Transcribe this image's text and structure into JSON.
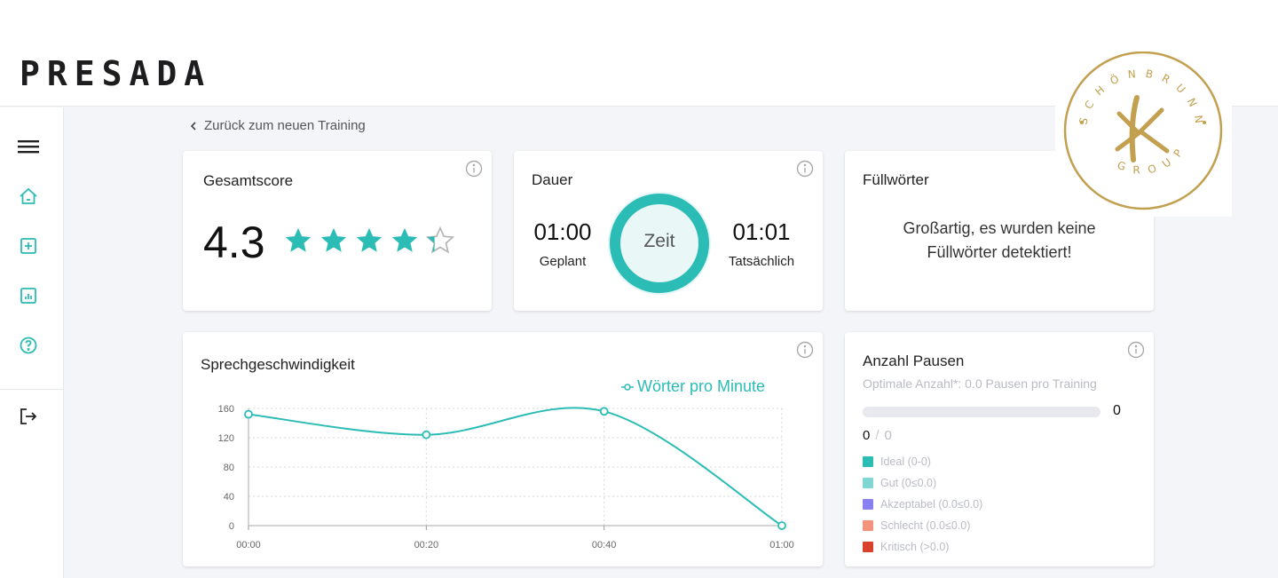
{
  "brand": {
    "logo": "PRESADA"
  },
  "sidebar": {
    "items": [
      {
        "name": "menu-icon"
      },
      {
        "name": "home-icon"
      },
      {
        "name": "add-icon"
      },
      {
        "name": "report-icon"
      },
      {
        "name": "help-icon"
      },
      {
        "name": "logout-icon"
      }
    ]
  },
  "nav": {
    "back_label": "Zurück zum neuen Training"
  },
  "score": {
    "title": "Gesamtscore",
    "value": "4.3",
    "rating": 4.3,
    "max": 5
  },
  "duration": {
    "title": "Dauer",
    "planned_value": "01:00",
    "planned_label": "Geplant",
    "center_label": "Zeit",
    "actual_value": "01:01",
    "actual_label": "Tatsächlich"
  },
  "filler": {
    "title": "Füllwörter",
    "message_line1": "Großartig, es wurden keine",
    "message_line2": "Füllwörter detektiert!"
  },
  "pauses": {
    "title": "Anzahl Pausen",
    "subtitle": "Optimale Anzahl*: 0.0 Pausen pro Training",
    "bar_value": "0",
    "bar_fraction": 0,
    "count_actual": "0",
    "count_sep": "/",
    "count_total": "0",
    "legend": [
      {
        "label": "Ideal (0-0)",
        "color": "#2bbcb6"
      },
      {
        "label": "Gut (0≤0.0)",
        "color": "#7fd6d2"
      },
      {
        "label": "Akzeptabel (0.0≤0.0)",
        "color": "#8a7ff0"
      },
      {
        "label": "Schlecht (0.0≤0.0)",
        "color": "#f4937c"
      },
      {
        "label": "Kritisch (>0.0)",
        "color": "#d9412d"
      }
    ]
  },
  "speed": {
    "title": "Sprechgeschwindigkeit",
    "legend_label": "Wörter pro Minute"
  },
  "chart_data": {
    "type": "line",
    "title": "Sprechgeschwindigkeit",
    "categories": [
      "00:00",
      "00:20",
      "00:40",
      "01:00"
    ],
    "series": [
      {
        "name": "Wörter pro Minute",
        "values": [
          152,
          124,
          156,
          0
        ]
      }
    ],
    "yticks": [
      0,
      40,
      80,
      120,
      160
    ],
    "ylim": [
      0,
      160
    ],
    "xlabel": "",
    "ylabel": "",
    "grid": true,
    "legend": "top-right"
  },
  "stamp": {
    "text": "SCHÖNBRUNN GROUP",
    "monogram": "K"
  },
  "colors": {
    "accent": "#2bbcb6",
    "star_empty": "#b5b5b5",
    "gold": "#c2a04f"
  }
}
